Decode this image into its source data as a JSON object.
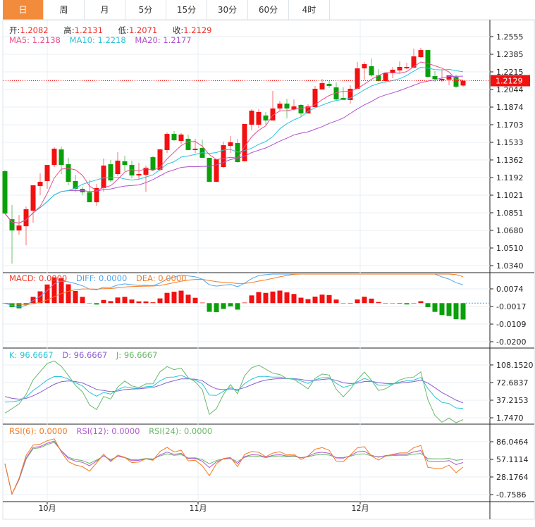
{
  "tabs": [
    "日",
    "周",
    "月",
    "5分",
    "15分",
    "30分",
    "60分",
    "4时"
  ],
  "active_tab": 0,
  "ohlc_legend": {
    "open_label": "开:",
    "open": "1.2082",
    "high_label": "高:",
    "high": "1.2131",
    "low_label": "低:",
    "low": "1.2071",
    "close_label": "收:",
    "close": "1.2129"
  },
  "ma_legend": {
    "ma5": "MA5: 1.2138",
    "ma10": "MA10: 1.2218",
    "ma20": "MA20: 1.2177"
  },
  "macd_legend": {
    "macd": "MACD: 0.0000",
    "diff": "DIFF: 0.0000",
    "dea": "DEA: 0.0000"
  },
  "kdj_legend": {
    "k": "K: 96.6667",
    "d": "D: 96.6667",
    "j": "J: 96.6667"
  },
  "rsi_legend": {
    "rsi6": "RSI(6): 0.0000",
    "rsi12": "RSI(12): 0.0000",
    "rsi24": "RSI(24): 0.0000"
  },
  "colors": {
    "up": "#f21010",
    "down": "#0aa00a",
    "accent": "#f28c3c",
    "ma5": "#e8508a",
    "ma10": "#2bc4d8",
    "ma20": "#b04fcf",
    "diff": "#4ea6f0",
    "dea": "#f47a20",
    "k": "#2bc4d8",
    "d": "#8a5fd0",
    "j": "#6ab86a",
    "rsi6": "#f47a20",
    "rsi12": "#b05cd0",
    "rsi24": "#6ab86a"
  },
  "chart_data": {
    "type": "candlestick",
    "last_price": "1.2129",
    "price_ticks": [
      "1.2555",
      "1.2385",
      "1.2215",
      "1.2044",
      "1.1874",
      "1.1703",
      "1.1533",
      "1.1362",
      "1.1192",
      "1.1021",
      "1.0851",
      "1.0680",
      "1.0510",
      "1.0340"
    ],
    "price_range": [
      1.034,
      1.2555
    ],
    "macd_ticks": [
      "0.0074",
      "-0.0017",
      "-0.0109",
      "-0.0200"
    ],
    "macd_range": [
      -0.02,
      0.0074
    ],
    "kdj_ticks": [
      "108.1520",
      "72.6837",
      "37.2153",
      "1.7470"
    ],
    "kdj_range": [
      1.747,
      108.152
    ],
    "rsi_ticks": [
      "86.0464",
      "57.1114",
      "28.1764",
      "-0.7586"
    ],
    "rsi_range": [
      -0.7586,
      86.0464
    ],
    "x_labels": [
      {
        "label": "10月",
        "index": 6
      },
      {
        "label": "11月",
        "index": 27.4
      },
      {
        "label": "12月",
        "index": 50.4
      }
    ],
    "candles": [
      [
        1.1253,
        1.1267,
        1.0844,
        1.0844
      ],
      [
        1.0789,
        1.0926,
        1.036,
        1.068
      ],
      [
        1.068,
        1.083,
        1.064,
        1.0728
      ],
      [
        1.0721,
        1.0912,
        1.0537,
        1.0885
      ],
      [
        1.0871,
        1.1117,
        1.0755,
        1.1117
      ],
      [
        1.111,
        1.1233,
        1.1021,
        1.1151
      ],
      [
        1.1158,
        1.1314,
        1.1083,
        1.1314
      ],
      [
        1.1314,
        1.1485,
        1.1294,
        1.1471
      ],
      [
        1.1464,
        1.1492,
        1.1226,
        1.1314
      ],
      [
        1.1321,
        1.1383,
        1.1117,
        1.1151
      ],
      [
        1.1158,
        1.1219,
        1.1049,
        1.1083
      ],
      [
        1.1083,
        1.1103,
        1.1021,
        1.1049
      ],
      [
        1.1049,
        1.1171,
        1.0953,
        1.0953
      ],
      [
        1.0953,
        1.113,
        1.0919,
        1.109
      ],
      [
        1.109,
        1.1376,
        1.1055,
        1.1308
      ],
      [
        1.1321,
        1.1362,
        1.1151,
        1.1164
      ],
      [
        1.1226,
        1.1437,
        1.1205,
        1.1355
      ],
      [
        1.1349,
        1.1403,
        1.1253,
        1.1314
      ],
      [
        1.1314,
        1.1355,
        1.1185,
        1.1212
      ],
      [
        1.1212,
        1.1335,
        1.1171,
        1.1226
      ],
      [
        1.1219,
        1.1308,
        1.1055,
        1.1287
      ],
      [
        1.1389,
        1.1403,
        1.1253,
        1.1267
      ],
      [
        1.1267,
        1.1471,
        1.1253,
        1.1464
      ],
      [
        1.1458,
        1.1628,
        1.143,
        1.1614
      ],
      [
        1.1614,
        1.1642,
        1.1546,
        1.1553
      ],
      [
        1.1546,
        1.1621,
        1.1512,
        1.1608
      ],
      [
        1.1567,
        1.1608,
        1.1458,
        1.1458
      ],
      [
        1.1458,
        1.1567,
        1.143,
        1.1471
      ],
      [
        1.1478,
        1.156,
        1.1383,
        1.1383
      ],
      [
        1.1383,
        1.1383,
        1.1144,
        1.1151
      ],
      [
        1.1151,
        1.1369,
        1.1144,
        1.1369
      ],
      [
        1.1294,
        1.1539,
        1.1287,
        1.1505
      ],
      [
        1.1498,
        1.1594,
        1.143,
        1.1533
      ],
      [
        1.1526,
        1.1567,
        1.1335,
        1.1342
      ],
      [
        1.1349,
        1.171,
        1.1349,
        1.171
      ],
      [
        1.1703,
        1.1853,
        1.1648,
        1.1839
      ],
      [
        1.1703,
        1.1853,
        1.1669,
        1.1826
      ],
      [
        1.1792,
        1.1826,
        1.1703,
        1.1744
      ],
      [
        1.1744,
        1.203,
        1.1744,
        1.186
      ],
      [
        1.186,
        1.1935,
        1.1839,
        1.1907
      ],
      [
        1.1907,
        1.1955,
        1.1764,
        1.186
      ],
      [
        1.1853,
        1.1948,
        1.1839,
        1.188
      ],
      [
        1.1894,
        1.1901,
        1.1778,
        1.1812
      ],
      [
        1.1812,
        1.1901,
        1.1812,
        1.188
      ],
      [
        1.1873,
        1.2078,
        1.1873,
        1.2051
      ],
      [
        1.2044,
        1.2146,
        1.2044,
        1.2105
      ],
      [
        1.2098,
        1.2126,
        1.2057,
        1.2078
      ],
      [
        1.2064,
        1.2112,
        1.1942,
        1.1948
      ],
      [
        1.1962,
        1.2064,
        1.1942,
        1.1942
      ],
      [
        1.1942,
        1.2085,
        1.1907,
        1.2051
      ],
      [
        1.2051,
        1.231,
        1.2051,
        1.2248
      ],
      [
        1.2248,
        1.231,
        1.2139,
        1.2289
      ],
      [
        1.2269,
        1.2344,
        1.2166,
        1.218
      ],
      [
        1.218,
        1.2241,
        1.2119,
        1.2126
      ],
      [
        1.2126,
        1.2201,
        1.2112,
        1.2201
      ],
      [
        1.2201,
        1.2262,
        1.2153,
        1.2235
      ],
      [
        1.2228,
        1.2316,
        1.2201,
        1.2262
      ],
      [
        1.2248,
        1.2303,
        1.2241,
        1.2262
      ],
      [
        1.2255,
        1.2439,
        1.2248,
        1.2364
      ],
      [
        1.2357,
        1.2446,
        1.2351,
        1.2425
      ],
      [
        1.2425,
        1.2425,
        1.216,
        1.2166
      ],
      [
        1.2173,
        1.2221,
        1.2119,
        1.2146
      ],
      [
        1.2132,
        1.2241,
        1.2119,
        1.2146
      ],
      [
        1.2139,
        1.218,
        1.2085,
        1.218
      ],
      [
        1.2166,
        1.2187,
        1.2057,
        1.2071
      ],
      [
        1.2082,
        1.2131,
        1.2071,
        1.2129
      ]
    ]
  }
}
